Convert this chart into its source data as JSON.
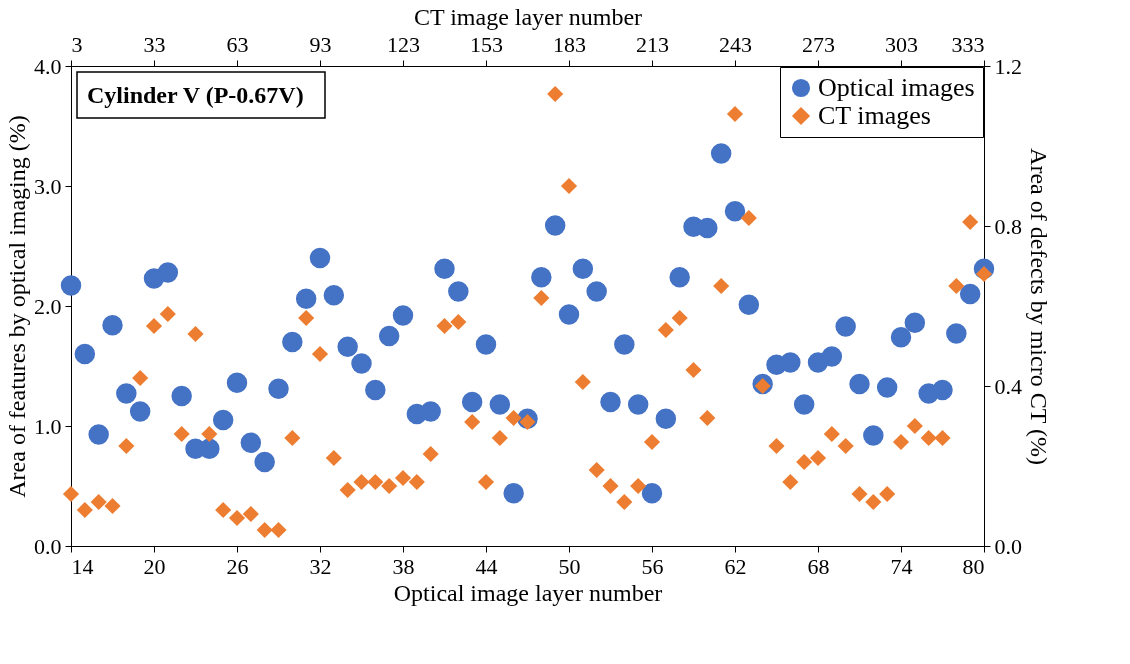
{
  "chart_data": {
    "type": "scatter",
    "title": "Cylinder V (P-0.67V)",
    "xlabel": "Optical image layer number",
    "ylabel": "Area of features by optical imaging (%)",
    "y2label": "Area of defects by micro CT (%)",
    "x2label": "CT image layer number",
    "x": [
      14,
      15,
      16,
      17,
      18,
      19,
      20,
      21,
      22,
      23,
      24,
      25,
      26,
      27,
      28,
      29,
      30,
      31,
      32,
      33,
      34,
      35,
      36,
      37,
      38,
      39,
      40,
      41,
      42,
      43,
      44,
      45,
      46,
      47,
      48,
      49,
      50,
      51,
      52,
      53,
      54,
      55,
      56,
      57,
      58,
      59,
      60,
      61,
      62,
      63,
      64,
      65,
      66,
      67,
      68,
      69,
      70,
      71,
      72,
      73,
      74,
      75,
      76,
      77,
      78,
      79,
      80
    ],
    "series": [
      {
        "name": "Optical images",
        "color": "#4472c4",
        "marker": "circle",
        "values": [
          2.17,
          1.6,
          0.93,
          1.84,
          1.27,
          1.12,
          2.23,
          2.28,
          1.25,
          0.81,
          0.81,
          1.05,
          1.36,
          0.86,
          0.7,
          1.31,
          1.7,
          2.06,
          2.4,
          2.09,
          1.66,
          1.52,
          1.3,
          1.75,
          1.92,
          1.1,
          1.12,
          2.31,
          2.12,
          1.2,
          1.68,
          1.18,
          0.44,
          1.06,
          2.24,
          2.67,
          1.93,
          2.31,
          2.12,
          1.2,
          1.68,
          1.18,
          0.44,
          1.06,
          2.24,
          2.66,
          2.65,
          3.27,
          2.79,
          2.01,
          1.35,
          1.51,
          1.53,
          1.18,
          1.53,
          1.58,
          1.83,
          1.35,
          0.92,
          1.32,
          1.74,
          1.86,
          1.27,
          1.3,
          1.77,
          2.1,
          2.31
        ]
      },
      {
        "name": "CT images",
        "color": "#ed7d31",
        "marker": "diamond",
        "axis": "y2",
        "values": [
          0.13,
          0.09,
          0.11,
          0.1,
          0.25,
          0.42,
          0.55,
          0.58,
          0.28,
          0.53,
          0.28,
          0.09,
          0.07,
          0.08,
          0.04,
          0.04,
          0.27,
          0.57,
          0.48,
          0.22,
          0.14,
          0.16,
          0.16,
          0.15,
          0.17,
          0.16,
          0.23,
          0.55,
          0.56,
          0.31,
          0.16,
          0.27,
          0.32,
          0.31,
          0.62,
          1.13,
          0.9,
          0.41,
          0.19,
          0.15,
          0.11,
          0.15,
          0.26,
          0.54,
          0.57,
          0.44,
          0.32,
          0.65,
          1.08,
          0.82,
          0.4,
          0.25,
          0.16,
          0.21,
          0.22,
          0.28,
          0.25,
          0.13,
          0.11,
          0.13,
          0.26,
          0.3,
          0.27,
          0.27,
          0.65,
          0.81,
          0.68
        ]
      }
    ],
    "xlim": [
      14,
      80
    ],
    "xticks": [
      14,
      20,
      26,
      32,
      38,
      44,
      50,
      56,
      62,
      68,
      74,
      80
    ],
    "x2lim": [
      3,
      333
    ],
    "x2ticks": [
      3,
      33,
      63,
      93,
      123,
      153,
      183,
      213,
      243,
      273,
      303,
      333
    ],
    "ylim": [
      0,
      4
    ],
    "yticks": [
      {
        "value": 0,
        "label": "0.0"
      },
      {
        "value": 1,
        "label": "1.0"
      },
      {
        "value": 2,
        "label": "2.0"
      },
      {
        "value": 3,
        "label": "3.0"
      },
      {
        "value": 4,
        "label": "4.0"
      }
    ],
    "y2lim": [
      0,
      1.2
    ],
    "y2ticks": [
      {
        "value": 0,
        "label": "0.0"
      },
      {
        "value": 0.4,
        "label": "0.4"
      },
      {
        "value": 0.8,
        "label": "0.8"
      },
      {
        "value": 1.2,
        "label": "1.2"
      }
    ],
    "legend": "top right",
    "grid": false
  }
}
